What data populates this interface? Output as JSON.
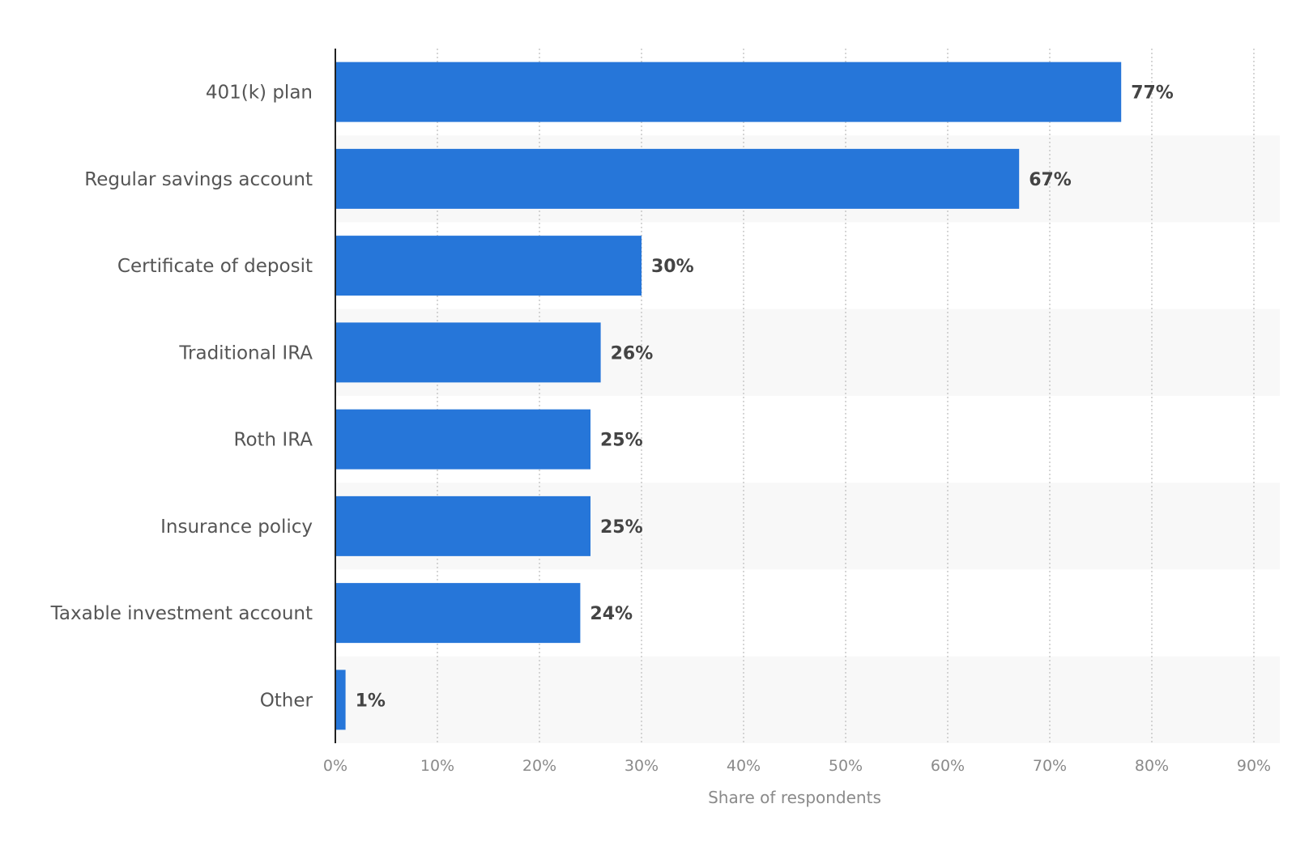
{
  "chart_data": {
    "type": "bar",
    "orientation": "horizontal",
    "categories": [
      "401(k) plan",
      "Regular savings account",
      "Certificate of deposit",
      "Traditional IRA",
      "Roth IRA",
      "Insurance policy",
      "Taxable investment account",
      "Other"
    ],
    "values": [
      77,
      67,
      30,
      26,
      25,
      25,
      24,
      1
    ],
    "value_labels": [
      "77%",
      "67%",
      "30%",
      "26%",
      "25%",
      "25%",
      "24%",
      "1%"
    ],
    "xlabel": "Share of respondents",
    "xlim": [
      0,
      90
    ],
    "xticks": [
      0,
      10,
      20,
      30,
      40,
      50,
      60,
      70,
      80,
      90
    ],
    "xtick_labels": [
      "0%",
      "10%",
      "20%",
      "30%",
      "40%",
      "50%",
      "60%",
      "70%",
      "80%",
      "90%"
    ],
    "grid": "vertical dotted",
    "colors": {
      "bar": "#2676d9",
      "band": "#f8f8f8",
      "grid": "#c8c8c8",
      "axis": "#222222"
    }
  }
}
